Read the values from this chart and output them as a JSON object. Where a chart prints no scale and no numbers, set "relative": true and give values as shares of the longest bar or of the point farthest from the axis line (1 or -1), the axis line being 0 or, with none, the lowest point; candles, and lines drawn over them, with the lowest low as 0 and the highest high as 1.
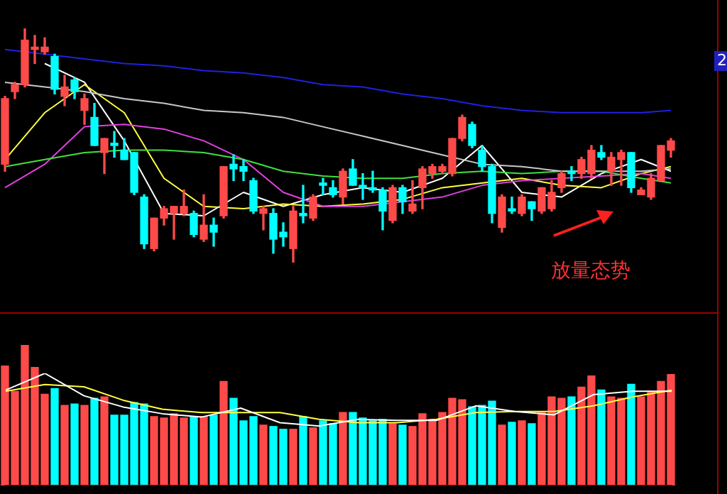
{
  "chart_data": [
    {
      "type": "candlestick",
      "relative": true,
      "legend": false,
      "marker": "none",
      "annotations": [
        "2",
        "放量态势"
      ],
      "categories": [
        null,
        null,
        null,
        null,
        null,
        null,
        null,
        null,
        null,
        null,
        null,
        null,
        null,
        null,
        null,
        null,
        null,
        null,
        null,
        null,
        null,
        null,
        null,
        null,
        null,
        null,
        null,
        null,
        null,
        null,
        null,
        null,
        null,
        null,
        null,
        null,
        null,
        null,
        null,
        null,
        null,
        null,
        null,
        null,
        null,
        null,
        null,
        null,
        null,
        null,
        null,
        null,
        null,
        null,
        null,
        null,
        null,
        null,
        null,
        null,
        null,
        null,
        null,
        null,
        null,
        null,
        null,
        null
      ],
      "ohlc": [
        [
          0.42,
          0.71,
          0.39,
          0.7
        ],
        [
          0.73,
          0.77,
          0.7,
          0.76
        ],
        [
          0.76,
          1,
          0.75,
          0.95
        ],
        [
          0.91,
          0.97,
          0.85,
          0.92
        ],
        [
          0.9,
          0.96,
          0.89,
          0.92
        ],
        [
          0.88,
          0.89,
          0.72,
          0.74
        ],
        [
          0.71,
          0.8,
          0.67,
          0.75
        ],
        [
          0.78,
          0.79,
          0.7,
          0.73
        ],
        [
          0.65,
          0.72,
          0.59,
          0.7
        ],
        [
          0.62,
          0.68,
          0.5,
          0.5
        ],
        [
          0.47,
          0.53,
          0.38,
          0.53
        ],
        [
          0.51,
          0.56,
          0.45,
          0.5
        ],
        [
          0.48,
          0.53,
          0.44,
          0.44
        ],
        [
          0.47,
          0.47,
          0.29,
          0.3
        ],
        [
          0.28,
          0.29,
          0.06,
          0.08
        ],
        [
          0.06,
          0.19,
          0.05,
          0.19
        ],
        [
          0.19,
          0.24,
          0.16,
          0.23
        ],
        [
          0.21,
          0.24,
          0.1,
          0.24
        ],
        [
          0.21,
          0.31,
          0.2,
          0.24
        ],
        [
          0.21,
          0.22,
          0.11,
          0.12
        ],
        [
          0.1,
          0.29,
          0.09,
          0.16
        ],
        [
          0.16,
          0.19,
          0.07,
          0.13
        ],
        [
          0.2,
          0.41,
          0.19,
          0.41
        ],
        [
          0.42,
          0.46,
          0.35,
          0.4
        ],
        [
          0.41,
          0.44,
          0.35,
          0.39
        ],
        [
          0.35,
          0.36,
          0.21,
          0.22
        ],
        [
          0.21,
          0.24,
          0.14,
          0.23
        ],
        [
          0.21,
          0.23,
          0.04,
          0.1
        ],
        [
          0.13,
          0.17,
          0.07,
          0.11
        ],
        [
          0.06,
          0.24,
          0,
          0.22
        ],
        [
          0.21,
          0.33,
          0.17,
          0.2
        ],
        [
          0.19,
          0.29,
          0.18,
          0.28
        ],
        [
          0.34,
          0.36,
          0.29,
          0.33
        ],
        [
          0.32,
          0.35,
          0.28,
          0.29
        ],
        [
          0.28,
          0.4,
          0.25,
          0.39
        ],
        [
          0.4,
          0.44,
          0.33,
          0.33
        ],
        [
          0.33,
          0.38,
          0.27,
          0.32
        ],
        [
          0.32,
          0.39,
          0.3,
          0.31
        ],
        [
          0.31,
          0.32,
          0.14,
          0.22
        ],
        [
          0.18,
          0.33,
          0.17,
          0.32
        ],
        [
          0.32,
          0.33,
          0.21,
          0.26
        ],
        [
          0.22,
          0.35,
          0.21,
          0.25
        ],
        [
          0.32,
          0.41,
          0.23,
          0.4
        ],
        [
          0.38,
          0.42,
          0.36,
          0.41
        ],
        [
          0.39,
          0.42,
          0.38,
          0.41
        ],
        [
          0.38,
          0.53,
          0.37,
          0.53
        ],
        [
          0.53,
          0.63,
          0.52,
          0.62
        ],
        [
          0.59,
          0.6,
          0.49,
          0.5
        ],
        [
          0.48,
          0.5,
          0.39,
          0.41
        ],
        [
          0.41,
          0.42,
          0.17,
          0.21
        ],
        [
          0.15,
          0.29,
          0.13,
          0.28
        ],
        [
          0.23,
          0.28,
          0.21,
          0.22
        ],
        [
          0.21,
          0.29,
          0.2,
          0.28
        ],
        [
          0.26,
          0.26,
          0.18,
          0.23
        ],
        [
          0.22,
          0.32,
          0.21,
          0.32
        ],
        [
          0.23,
          0.35,
          0.22,
          0.3
        ],
        [
          0.32,
          0.39,
          0.3,
          0.38
        ],
        [
          0.39,
          0.41,
          0.35,
          0.38
        ],
        [
          0.38,
          0.45,
          0.36,
          0.44
        ],
        [
          0.38,
          0.5,
          0.36,
          0.48
        ],
        [
          0.47,
          0.5,
          0.44,
          0.45
        ],
        [
          0.39,
          0.47,
          0.33,
          0.45
        ],
        [
          0.44,
          0.48,
          0.33,
          0.47
        ],
        [
          0.47,
          0.47,
          0.3,
          0.32
        ],
        [
          0.29,
          0.32,
          0.29,
          0.31
        ],
        [
          0.28,
          0.38,
          0.27,
          0.36
        ],
        [
          0.35,
          0.5,
          0.35,
          0.5
        ],
        [
          0.48,
          0.53,
          0.45,
          0.52
        ]
      ],
      "colors": [
        "#ff4a4a",
        "#ff4a4a",
        "#ff4a4a",
        "#ff4a4a",
        "#ff4a4a",
        "#00ffff",
        "#ff4a4a",
        "#00ffff",
        "#ff4a4a",
        "#00ffff",
        "#ff4a4a",
        "#00ffff",
        "#00ffff",
        "#00ffff",
        "#00ffff",
        "#ff4a4a",
        "#ff4a4a",
        "#ff4a4a",
        "#ff4a4a",
        "#00ffff",
        "#ff4a4a",
        "#00ffff",
        "#ff4a4a",
        "#00ffff",
        "#00ffff",
        "#00ffff",
        "#ff4a4a",
        "#00ffff",
        "#00ffff",
        "#ff4a4a",
        "#00ffff",
        "#ff4a4a",
        "#00ffff",
        "#00ffff",
        "#ff4a4a",
        "#00ffff",
        "#00ffff",
        "#00ffff",
        "#00ffff",
        "#ff4a4a",
        "#00ffff",
        "#ff4a4a",
        "#ff4a4a",
        "#ff4a4a",
        "#ff4a4a",
        "#ff4a4a",
        "#ff4a4a",
        "#00ffff",
        "#00ffff",
        "#00ffff",
        "#ff4a4a",
        "#00ffff",
        "#ff4a4a",
        "#00ffff",
        "#ff4a4a",
        "#ff4a4a",
        "#ff4a4a",
        "#00ffff",
        "#ff4a4a",
        "#ff4a4a",
        "#00ffff",
        "#ff4a4a",
        "#ff4a4a",
        "#00ffff",
        "#ff4a4a",
        "#ff4a4a",
        "#ff4a4a",
        "#ff4a4a"
      ],
      "series": [
        {
          "type": "line",
          "color": "#2020e0",
          "values": [
            0.91,
            null,
            null,
            null,
            0.89,
            null,
            null,
            null,
            0.87,
            null,
            null,
            null,
            0.85,
            null,
            null,
            null,
            0.84,
            null,
            null,
            null,
            0.82,
            null,
            null,
            null,
            0.81,
            null,
            null,
            null,
            0.79,
            null,
            null,
            null,
            0.76,
            null,
            null,
            null,
            0.75,
            null,
            null,
            null,
            0.72,
            null,
            null,
            null,
            0.7,
            null,
            null,
            null,
            0.67,
            null,
            null,
            null,
            0.65,
            null,
            null,
            null,
            0.64,
            null,
            null,
            null,
            0.64,
            null,
            null,
            null,
            0.64,
            null,
            null,
            0.65
          ]
        },
        {
          "type": "line",
          "color": "#c8c8c8",
          "values": [
            0.77,
            null,
            null,
            null,
            0.75,
            null,
            null,
            null,
            0.73,
            null,
            null,
            null,
            0.7,
            null,
            null,
            null,
            0.68,
            null,
            null,
            null,
            0.65,
            null,
            null,
            null,
            0.64,
            null,
            null,
            null,
            0.62,
            null,
            null,
            null,
            0.58,
            null,
            null,
            null,
            0.54,
            null,
            null,
            null,
            0.5,
            null,
            null,
            null,
            0.46,
            null,
            null,
            null,
            0.42,
            null,
            null,
            null,
            0.41,
            null,
            null,
            null,
            0.39,
            null,
            null,
            null,
            0.39,
            null,
            null,
            null,
            0.39,
            null,
            null,
            0.4
          ]
        },
        {
          "type": "line",
          "color": "#40e040",
          "values": [
            0.41,
            null,
            null,
            null,
            0.44,
            null,
            null,
            null,
            0.47,
            null,
            null,
            null,
            0.48,
            null,
            null,
            null,
            0.48,
            null,
            null,
            null,
            0.47,
            null,
            null,
            null,
            0.44,
            null,
            null,
            null,
            0.39,
            null,
            null,
            null,
            0.37,
            null,
            null,
            null,
            0.36,
            null,
            null,
            null,
            0.36,
            null,
            null,
            null,
            0.38,
            null,
            null,
            null,
            0.39,
            null,
            null,
            null,
            0.38,
            null,
            null,
            null,
            0.39,
            null,
            null,
            null,
            0.39,
            null,
            null,
            null,
            0.36,
            null,
            null,
            0.34
          ]
        },
        {
          "type": "line",
          "color": "#e040e0",
          "values": [
            0.32,
            null,
            null,
            null,
            0.42,
            null,
            null,
            null,
            0.58,
            null,
            null,
            null,
            0.59,
            null,
            null,
            null,
            0.57,
            null,
            null,
            null,
            0.52,
            null,
            null,
            null,
            0.44,
            null,
            null,
            null,
            0.3,
            null,
            null,
            null,
            0.24,
            null,
            null,
            null,
            0.24,
            null,
            null,
            null,
            0.26,
            null,
            null,
            null,
            0.28,
            null,
            null,
            null,
            0.33,
            null,
            null,
            null,
            0.35,
            null,
            null,
            null,
            0.36,
            null,
            null,
            null,
            0.37,
            null,
            null,
            null,
            0.38,
            null,
            null,
            0.36
          ]
        },
        {
          "type": "line",
          "color": "#ffff40",
          "values": [
            0.44,
            null,
            null,
            null,
            0.64,
            null,
            null,
            null,
            0.76,
            null,
            null,
            null,
            0.64,
            null,
            null,
            null,
            0.36,
            null,
            null,
            null,
            0.24,
            null,
            null,
            null,
            0.23,
            null,
            null,
            null,
            0.25,
            null,
            null,
            null,
            0.24,
            null,
            null,
            null,
            0.25,
            null,
            null,
            null,
            0.27,
            null,
            null,
            null,
            0.32,
            null,
            null,
            null,
            null,
            null,
            null,
            null,
            0.36,
            null,
            null,
            null,
            0.33,
            null,
            null,
            null,
            0.32,
            null,
            null,
            null,
            0.38,
            null,
            null,
            0.41
          ]
        },
        {
          "type": "line",
          "color": "#ffffff",
          "values": [
            null,
            null,
            null,
            null,
            0.85,
            null,
            null,
            null,
            0.77,
            null,
            null,
            null,
            0.52,
            null,
            null,
            null,
            0.21,
            null,
            null,
            null,
            0.2,
            null,
            null,
            null,
            0.3,
            null,
            null,
            null,
            0.24,
            null,
            null,
            null,
            0.29,
            null,
            null,
            null,
            0.32,
            null,
            null,
            null,
            0.3,
            null,
            null,
            null,
            0.36,
            null,
            null,
            null,
            0.5,
            null,
            null,
            null,
            0.3,
            null,
            null,
            null,
            0.28,
            null,
            null,
            null,
            0.38,
            null,
            null,
            null,
            0.44,
            null,
            null,
            0.39
          ]
        }
      ]
    },
    {
      "type": "bar",
      "relative": true,
      "legend": false,
      "categories": [
        null,
        null,
        null,
        null,
        null,
        null,
        null,
        null,
        null,
        null,
        null,
        null,
        null,
        null,
        null,
        null,
        null,
        null,
        null,
        null,
        null,
        null,
        null,
        null,
        null,
        null,
        null,
        null,
        null,
        null,
        null,
        null,
        null,
        null,
        null,
        null,
        null,
        null,
        null,
        null,
        null,
        null,
        null,
        null,
        null,
        null,
        null,
        null,
        null,
        null,
        null,
        null,
        null,
        null,
        null,
        null,
        null,
        null,
        null,
        null,
        null,
        null,
        null,
        null,
        null,
        null,
        null,
        null
      ],
      "values": [
        0.85,
        0.67,
        1,
        0.84,
        0.65,
        0.69,
        0.57,
        0.58,
        0.57,
        0.62,
        0.63,
        0.5,
        0.5,
        0.59,
        0.58,
        0.49,
        0.48,
        0.51,
        0.48,
        0.49,
        0.49,
        0.5,
        0.74,
        0.62,
        0.46,
        0.49,
        0.43,
        0.42,
        0.4,
        0.4,
        0.49,
        0.41,
        0.46,
        0.44,
        0.52,
        0.52,
        0.48,
        0.46,
        0.47,
        0.44,
        0.43,
        0.42,
        0.51,
        0.47,
        0.52,
        0.62,
        0.61,
        0.56,
        0.57,
        0.6,
        0.43,
        0.45,
        0.46,
        0.44,
        0.52,
        0.63,
        0.62,
        0.63,
        0.7,
        0.78,
        0.68,
        0.63,
        0.62,
        0.72,
        0.63,
        0.67,
        0.74,
        0.79
      ],
      "colors": [
        "#ff4a4a",
        "#ff4a4a",
        "#ff4a4a",
        "#ff4a4a",
        "#ff4a4a",
        "#00ffff",
        "#ff4a4a",
        "#00ffff",
        "#ff4a4a",
        "#00ffff",
        "#ff4a4a",
        "#00ffff",
        "#00ffff",
        "#00ffff",
        "#00ffff",
        "#ff4a4a",
        "#ff4a4a",
        "#ff4a4a",
        "#ff4a4a",
        "#00ffff",
        "#ff4a4a",
        "#00ffff",
        "#ff4a4a",
        "#00ffff",
        "#00ffff",
        "#00ffff",
        "#ff4a4a",
        "#00ffff",
        "#00ffff",
        "#ff4a4a",
        "#00ffff",
        "#ff4a4a",
        "#00ffff",
        "#00ffff",
        "#ff4a4a",
        "#00ffff",
        "#00ffff",
        "#00ffff",
        "#00ffff",
        "#ff4a4a",
        "#00ffff",
        "#ff4a4a",
        "#ff4a4a",
        "#ff4a4a",
        "#ff4a4a",
        "#ff4a4a",
        "#ff4a4a",
        "#00ffff",
        "#00ffff",
        "#00ffff",
        "#ff4a4a",
        "#00ffff",
        "#ff4a4a",
        "#00ffff",
        "#ff4a4a",
        "#ff4a4a",
        "#ff4a4a",
        "#00ffff",
        "#ff4a4a",
        "#ff4a4a",
        "#00ffff",
        "#ff4a4a",
        "#ff4a4a",
        "#00ffff",
        "#ff4a4a",
        "#ff4a4a",
        "#ff4a4a",
        "#ff4a4a"
      ]
    },
    {
      "type": "line",
      "relative": true,
      "legend": false,
      "marker": "none",
      "categories": [
        null,
        null,
        null,
        null,
        null,
        null,
        null,
        null,
        null,
        null,
        null,
        null,
        null,
        null,
        null,
        null,
        null,
        null
      ],
      "series": [
        {
          "color": "#ffffff",
          "values": [
            0.85,
            1,
            0.8,
            0.7,
            0.64,
            0.61,
            0.69,
            0.56,
            0.53,
            0.59,
            0.58,
            0.58,
            0.71,
            0.66,
            0.63,
            0.81,
            0.84,
            0.84
          ]
        },
        {
          "color": "#ffff40",
          "values": [
            0.84,
            0.9,
            0.88,
            0.76,
            0.68,
            0.65,
            0.65,
            0.65,
            0.59,
            0.56,
            0.56,
            0.59,
            0.65,
            0.66,
            0.66,
            0.71,
            0.79,
            0.85
          ]
        }
      ]
    }
  ]
}
